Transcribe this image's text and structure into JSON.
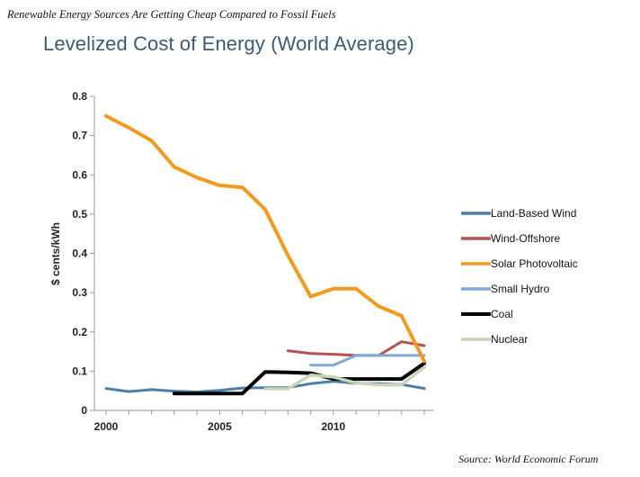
{
  "header_caption": "Renewable Energy Sources Are Getting Cheap Compared to Fossil Fuels",
  "source_note": "Source:  World Economic Forum",
  "chart_data": {
    "type": "line",
    "title": "Levelized Cost of Energy (World Average)",
    "xlabel": "",
    "ylabel": "$ cents/kWh",
    "xlim": [
      2000,
      2014
    ],
    "ylim": [
      0,
      0.8
    ],
    "xticks": [
      2000,
      2005,
      2010
    ],
    "yticks": [
      0,
      0.1,
      0.2,
      0.3,
      0.4,
      0.5,
      0.6,
      0.7,
      0.8
    ],
    "ytick_labels": [
      "0",
      "0.1",
      "0.2",
      "0.3",
      "0.4",
      "0.5",
      "0.6",
      "0.7",
      "0.8"
    ],
    "grid": false,
    "legend_position": "right",
    "series": [
      {
        "name": "Land-Based Wind",
        "color": "#4a7fa8",
        "x": [
          2000,
          2001,
          2002,
          2003,
          2004,
          2005,
          2006,
          2007,
          2008,
          2009,
          2010,
          2011,
          2012,
          2013,
          2014
        ],
        "y": [
          0.056,
          0.048,
          0.053,
          0.049,
          0.047,
          0.051,
          0.057,
          0.058,
          0.058,
          0.068,
          0.074,
          0.069,
          0.068,
          0.066,
          0.056
        ]
      },
      {
        "name": "Wind-Offshore",
        "color": "#b5524f",
        "x": [
          2008,
          2009,
          2010,
          2011,
          2012,
          2013,
          2014
        ],
        "y": [
          0.152,
          0.145,
          0.143,
          0.14,
          0.14,
          0.175,
          0.165
        ]
      },
      {
        "name": "Solar Photovoltaic",
        "color": "#f39a1e",
        "x": [
          2000,
          2001,
          2002,
          2003,
          2004,
          2005,
          2006,
          2007,
          2008,
          2009,
          2010,
          2011,
          2012,
          2013,
          2014
        ],
        "y": [
          0.75,
          0.72,
          0.687,
          0.62,
          0.593,
          0.573,
          0.568,
          0.512,
          0.395,
          0.29,
          0.31,
          0.31,
          0.265,
          0.241,
          0.125
        ]
      },
      {
        "name": "Small Hydro",
        "color": "#7fa9d9",
        "x": [
          2009,
          2010,
          2011,
          2012,
          2013,
          2014
        ],
        "y": [
          0.115,
          0.115,
          0.14,
          0.14,
          0.14,
          0.14
        ]
      },
      {
        "name": "Coal",
        "color": "#000000",
        "x": [
          2003,
          2004,
          2005,
          2006,
          2007,
          2008,
          2009,
          2010,
          2011,
          2012,
          2013,
          2014
        ],
        "y": [
          0.043,
          0.043,
          0.043,
          0.043,
          0.098,
          0.097,
          0.095,
          0.08,
          0.08,
          0.08,
          0.08,
          0.12
        ]
      },
      {
        "name": "Nuclear",
        "color": "#c9d4b5",
        "x": [
          2007,
          2008,
          2009,
          2010,
          2011,
          2012,
          2013,
          2014
        ],
        "y": [
          0.055,
          0.055,
          0.09,
          0.085,
          0.07,
          0.065,
          0.065,
          0.11
        ]
      }
    ]
  }
}
